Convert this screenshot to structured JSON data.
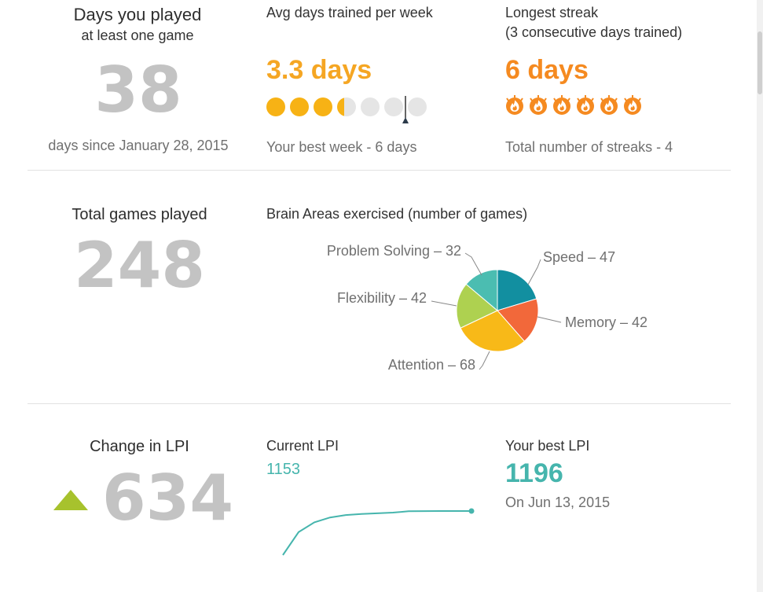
{
  "days_played": {
    "title": "Days you played",
    "subtitle": "at least one game",
    "value": "38",
    "footnote": "days since January 28, 2015"
  },
  "avg_days": {
    "title": "Avg days trained per week",
    "value": "3.3 days",
    "dots_filled": 3.3,
    "dots_total": 7,
    "best_week_marker": 6,
    "footnote": "Your best week - 6 days",
    "color": "#f7b215"
  },
  "streak": {
    "title": "Longest streak",
    "subtitle": "(3 consecutive days trained)",
    "value": "6 days",
    "flames": 6,
    "footnote": "Total number of streaks - 4",
    "color": "#f58a20"
  },
  "total_games": {
    "title": "Total games played",
    "value": "248"
  },
  "brain_areas": {
    "title": "Brain Areas exercised (number of games)",
    "chart_data": {
      "type": "pie",
      "title": "",
      "slices": [
        {
          "label": "Speed",
          "value": 47,
          "color": "#128fa0",
          "text": "Speed – 47"
        },
        {
          "label": "Memory",
          "value": 42,
          "color": "#f2683a",
          "text": "Memory – 42"
        },
        {
          "label": "Attention",
          "value": 68,
          "color": "#f8b918",
          "text": "Attention – 68"
        },
        {
          "label": "Flexibility",
          "value": 42,
          "color": "#aed150",
          "text": "Flexibility – 42"
        },
        {
          "label": "Problem Solving",
          "value": 32,
          "color": "#4bbdb1",
          "text": "Problem Solving – 32"
        }
      ]
    }
  },
  "lpi_change": {
    "title": "Change in LPI",
    "value": "634",
    "arrow": "up-triangle-icon",
    "arrow_color": "#a7c22d"
  },
  "current_lpi": {
    "title": "Current LPI",
    "value": "1153",
    "chart_data": {
      "type": "line",
      "title": "",
      "xlabel": "",
      "ylabel": "",
      "grid": false,
      "x": [
        0,
        1,
        2,
        3,
        4,
        5,
        6,
        7,
        8,
        9,
        10,
        11,
        12
      ],
      "values": [
        519,
        850,
        990,
        1060,
        1095,
        1110,
        1120,
        1130,
        1150,
        1152,
        1153,
        1153,
        1153
      ],
      "color": "#46b5ad"
    }
  },
  "best_lpi": {
    "title": "Your best LPI",
    "value": "1196",
    "date": "On Jun 13, 2015"
  }
}
